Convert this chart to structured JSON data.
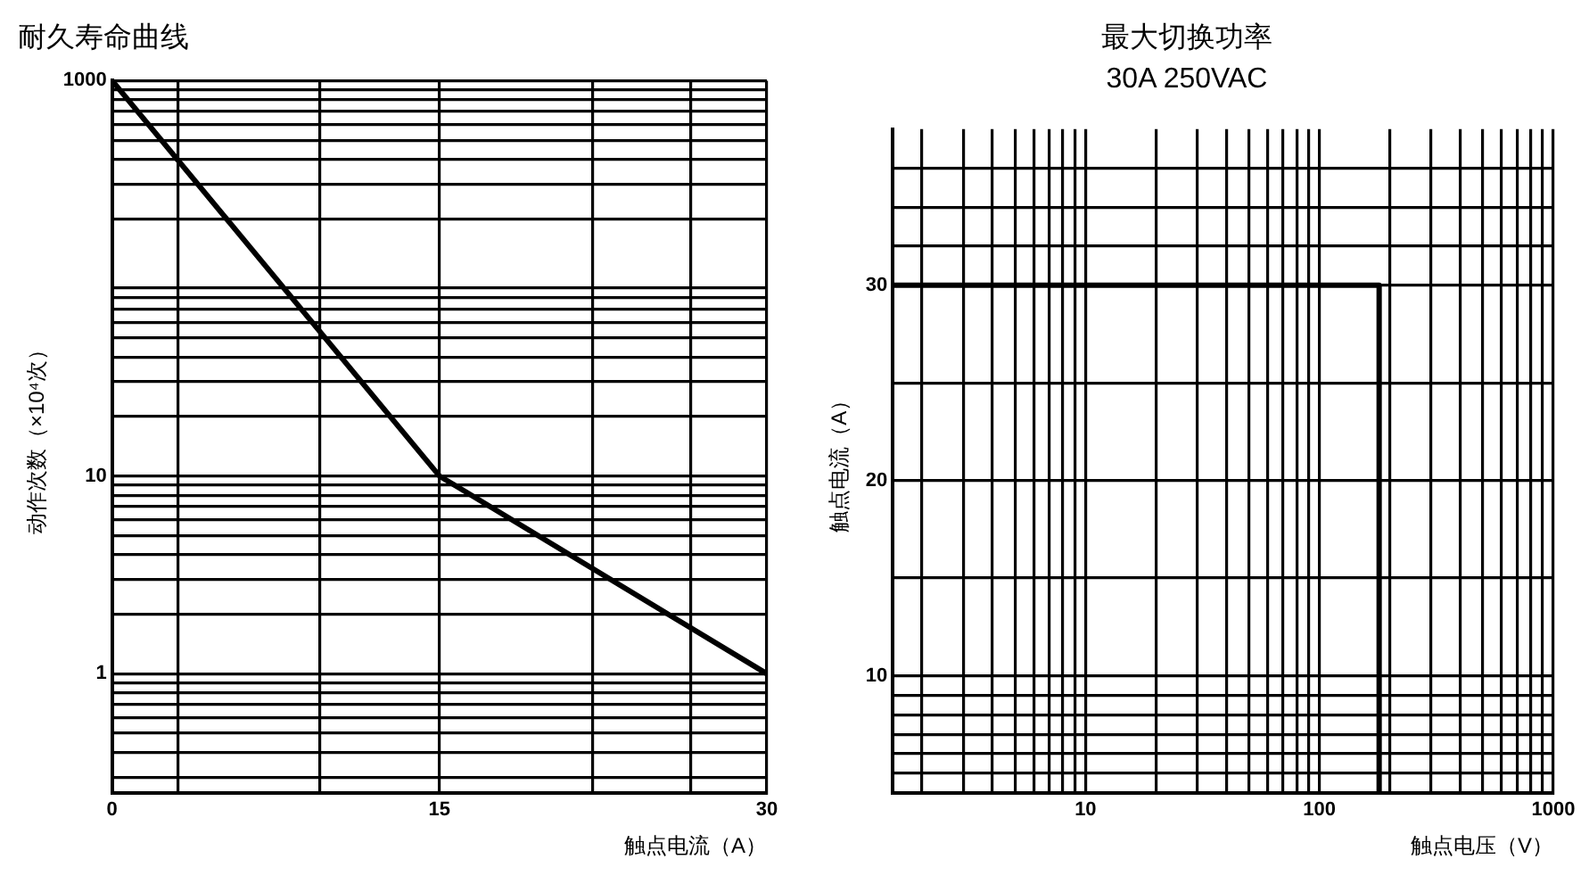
{
  "chart_data": [
    {
      "type": "line",
      "title": "耐久寿命曲线",
      "xlabel": "触点电流（A）",
      "ylabel": "动作次数（×10⁴次）",
      "log": "y",
      "grid": true,
      "marker": "none",
      "line_style": "solid",
      "series": [
        {
          "color": "#000000",
          "x": [
            0,
            15,
            30
          ],
          "values": [
            1000,
            10,
            1
          ]
        }
      ],
      "xlim": [
        0,
        30
      ],
      "ylim": [
        0.25,
        1000
      ],
      "xticks": [
        0,
        {
          "value": 3,
          "label": null
        },
        {
          "value": 9.5,
          "label": null
        },
        15,
        {
          "value": 22,
          "label": null
        },
        {
          "value": 26.5,
          "label": null
        },
        30
      ],
      "yticks": [
        {
          "value": 0.3,
          "label": null
        },
        {
          "value": 0.4,
          "label": null
        },
        {
          "value": 0.5,
          "label": null
        },
        {
          "value": 0.6,
          "label": null
        },
        {
          "value": 0.7,
          "label": null
        },
        {
          "value": 0.8,
          "label": null
        },
        {
          "value": 0.9,
          "label": null
        },
        1,
        {
          "value": 2,
          "label": null
        },
        {
          "value": 3,
          "label": null
        },
        {
          "value": 4,
          "label": null
        },
        {
          "value": 5,
          "label": null
        },
        {
          "value": 6,
          "label": null
        },
        {
          "value": 7,
          "label": null
        },
        {
          "value": 8,
          "label": null
        },
        {
          "value": 9,
          "label": null
        },
        10,
        {
          "value": 20,
          "label": null
        },
        {
          "value": 30,
          "label": null
        },
        {
          "value": 40,
          "label": null
        },
        {
          "value": 50,
          "label": null
        },
        {
          "value": 60,
          "label": null
        },
        {
          "value": 70,
          "label": null
        },
        {
          "value": 80,
          "label": null
        },
        {
          "value": 90,
          "label": null
        },
        {
          "value": 200,
          "label": null
        },
        {
          "value": 300,
          "label": null
        },
        {
          "value": 400,
          "label": null
        },
        {
          "value": 500,
          "label": null
        },
        {
          "value": 600,
          "label": null
        },
        {
          "value": 700,
          "label": null
        },
        {
          "value": 800,
          "label": null
        },
        {
          "value": 900,
          "label": null
        },
        1000
      ]
    },
    {
      "type": "line",
      "title": "最大切换功率",
      "subtitle": "30A 250VAC",
      "xlabel": "触点电压（V）",
      "ylabel": "触点电流（A）",
      "log": "x",
      "grid": true,
      "marker": "none",
      "line_style": "solid",
      "series": [
        {
          "color": "#000000",
          "x": [
            1.5,
            180,
            180
          ],
          "values": [
            30,
            30,
            4
          ]
        }
      ],
      "xlim": [
        1.5,
        1000
      ],
      "ylim": [
        4,
        38
      ],
      "xticks": [
        {
          "value": 2,
          "label": null
        },
        {
          "value": 3,
          "label": null
        },
        {
          "value": 4,
          "label": null
        },
        {
          "value": 5,
          "label": null
        },
        {
          "value": 6,
          "label": null
        },
        {
          "value": 7,
          "label": null
        },
        {
          "value": 8,
          "label": null
        },
        {
          "value": 9,
          "label": null
        },
        10,
        {
          "value": 20,
          "label": null
        },
        {
          "value": 30,
          "label": null
        },
        {
          "value": 40,
          "label": null
        },
        {
          "value": 50,
          "label": null
        },
        {
          "value": 60,
          "label": null
        },
        {
          "value": 70,
          "label": null
        },
        {
          "value": 80,
          "label": null
        },
        {
          "value": 90,
          "label": null
        },
        100,
        {
          "value": 200,
          "label": null
        },
        {
          "value": 300,
          "label": null
        },
        {
          "value": 400,
          "label": null
        },
        {
          "value": 500,
          "label": null
        },
        {
          "value": 600,
          "label": null
        },
        {
          "value": 700,
          "label": null
        },
        {
          "value": 800,
          "label": null
        },
        {
          "value": 900,
          "label": null
        },
        1000
      ],
      "yticks": [
        {
          "value": 5,
          "label": null
        },
        {
          "value": 6,
          "label": null
        },
        {
          "value": 7,
          "label": null
        },
        {
          "value": 8,
          "label": null
        },
        {
          "value": 9,
          "label": null
        },
        10,
        {
          "value": 15,
          "label": null
        },
        20,
        {
          "value": 25,
          "label": null
        },
        30,
        {
          "value": 32,
          "label": null
        },
        {
          "value": 34,
          "label": null
        },
        {
          "value": 36,
          "label": null
        }
      ]
    }
  ]
}
